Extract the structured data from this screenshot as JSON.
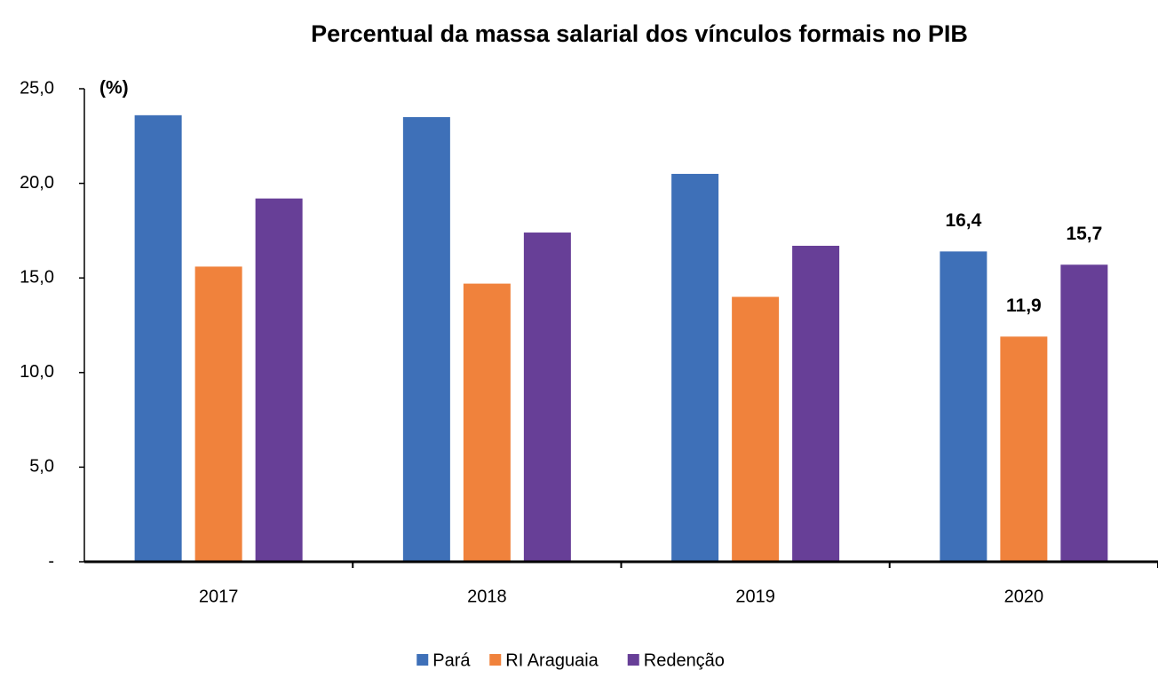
{
  "chart_data": {
    "type": "bar",
    "title": "Percentual da massa salarial dos vínculos formais no PIB",
    "y_label": "(%)",
    "categories": [
      "2017",
      "2018",
      "2019",
      "2020"
    ],
    "series": [
      {
        "name": "Pará",
        "color": "#3e70b8",
        "values": [
          23.6,
          23.5,
          20.5,
          16.4
        ],
        "value_labels": [
          null,
          null,
          null,
          "16,4"
        ]
      },
      {
        "name": "RI Araguaia",
        "color": "#f0823c",
        "values": [
          15.6,
          14.7,
          14.0,
          11.9
        ],
        "value_labels": [
          null,
          null,
          null,
          "11,9"
        ]
      },
      {
        "name": "Redenção",
        "color": "#673f97",
        "values": [
          19.2,
          17.4,
          16.7,
          15.7
        ],
        "value_labels": [
          null,
          null,
          null,
          "15,7"
        ]
      }
    ],
    "ylim": [
      0,
      25
    ],
    "yticks": [
      {
        "value": 0,
        "label": "-"
      },
      {
        "value": 5,
        "label": "5,0"
      },
      {
        "value": 10,
        "label": "10,0"
      },
      {
        "value": 15,
        "label": "15,0"
      },
      {
        "value": 20,
        "label": "20,0"
      },
      {
        "value": 25,
        "label": "25,0"
      }
    ],
    "legend": "bottom"
  }
}
